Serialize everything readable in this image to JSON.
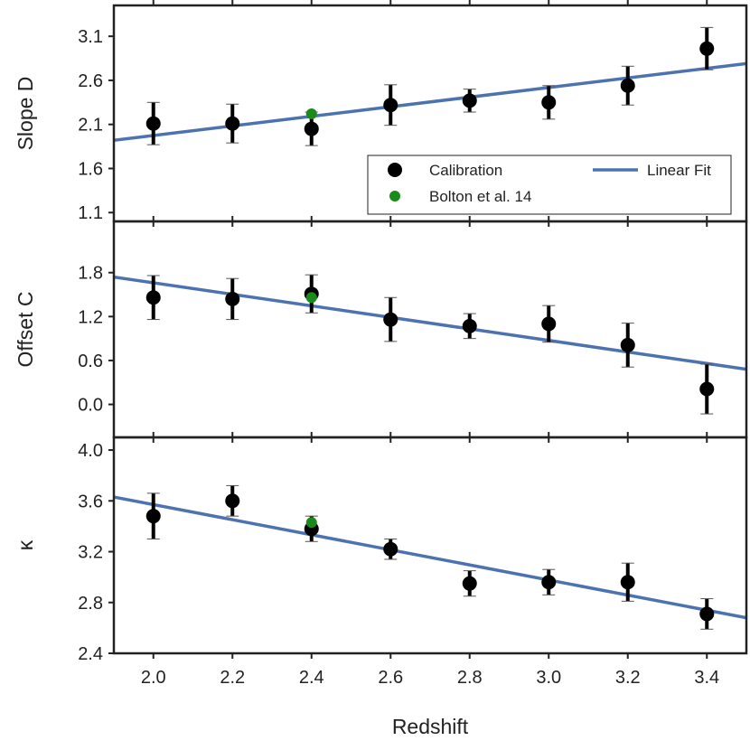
{
  "chart_data": {
    "type": "scatter",
    "x_label": "Redshift",
    "x_range": [
      1.9,
      3.5
    ],
    "x_ticks": [
      "2.0",
      "2.2",
      "2.4",
      "2.6",
      "2.8",
      "3.0",
      "3.2",
      "3.4"
    ],
    "grid": false,
    "legend": {
      "placement": "lower-right (top panel)",
      "entries": [
        {
          "label": "Calibration",
          "marker": "circle",
          "color": "#000000"
        },
        {
          "label": "Bolton et al. 14",
          "marker": "circle",
          "color": "#1a8a1a"
        },
        {
          "label": "Linear Fit",
          "marker": "line",
          "color": "#4c72b0"
        }
      ]
    },
    "panels": [
      {
        "ylabel": "Slope D",
        "y_range": [
          1.0,
          3.45
        ],
        "y_ticks": [
          "1.1",
          "1.6",
          "2.1",
          "2.6",
          "3.1"
        ],
        "calibration": {
          "x": [
            2.0,
            2.2,
            2.4,
            2.6,
            2.8,
            3.0,
            3.2,
            3.4
          ],
          "y": [
            2.11,
            2.11,
            2.05,
            2.32,
            2.37,
            2.35,
            2.54,
            2.96
          ],
          "yerr": [
            0.24,
            0.22,
            0.19,
            0.23,
            0.13,
            0.19,
            0.22,
            0.24
          ]
        },
        "bolton": {
          "x": [
            2.4
          ],
          "y": [
            2.22
          ]
        },
        "fit": {
          "x": [
            1.9,
            3.5
          ],
          "y": [
            1.92,
            2.79
          ]
        }
      },
      {
        "ylabel": "Offset C",
        "y_range": [
          -0.45,
          2.5
        ],
        "y_ticks": [
          "0.0",
          "0.6",
          "1.2",
          "1.8"
        ],
        "calibration": {
          "x": [
            2.0,
            2.2,
            2.4,
            2.6,
            2.8,
            3.0,
            3.2,
            3.4
          ],
          "y": [
            1.46,
            1.44,
            1.51,
            1.16,
            1.07,
            1.1,
            0.81,
            0.21
          ],
          "yerr": [
            0.3,
            0.28,
            0.26,
            0.3,
            0.17,
            0.25,
            0.3,
            0.34
          ]
        },
        "bolton": {
          "x": [
            2.4
          ],
          "y": [
            1.46
          ]
        },
        "fit": {
          "x": [
            1.9,
            3.5
          ],
          "y": [
            1.74,
            0.48
          ]
        }
      },
      {
        "ylabel": "κ",
        "y_range": [
          2.4,
          4.1
        ],
        "y_ticks": [
          "2.4",
          "2.8",
          "3.2",
          "3.6",
          "4.0"
        ],
        "calibration": {
          "x": [
            2.0,
            2.2,
            2.4,
            2.6,
            2.8,
            3.0,
            3.2,
            3.4
          ],
          "y": [
            3.48,
            3.6,
            3.38,
            3.22,
            2.95,
            2.96,
            2.96,
            2.71
          ],
          "yerr": [
            0.18,
            0.12,
            0.1,
            0.08,
            0.1,
            0.1,
            0.15,
            0.12
          ]
        },
        "bolton": {
          "x": [
            2.4
          ],
          "y": [
            3.43
          ]
        },
        "fit": {
          "x": [
            1.9,
            3.5
          ],
          "y": [
            3.63,
            2.68
          ]
        }
      }
    ]
  }
}
